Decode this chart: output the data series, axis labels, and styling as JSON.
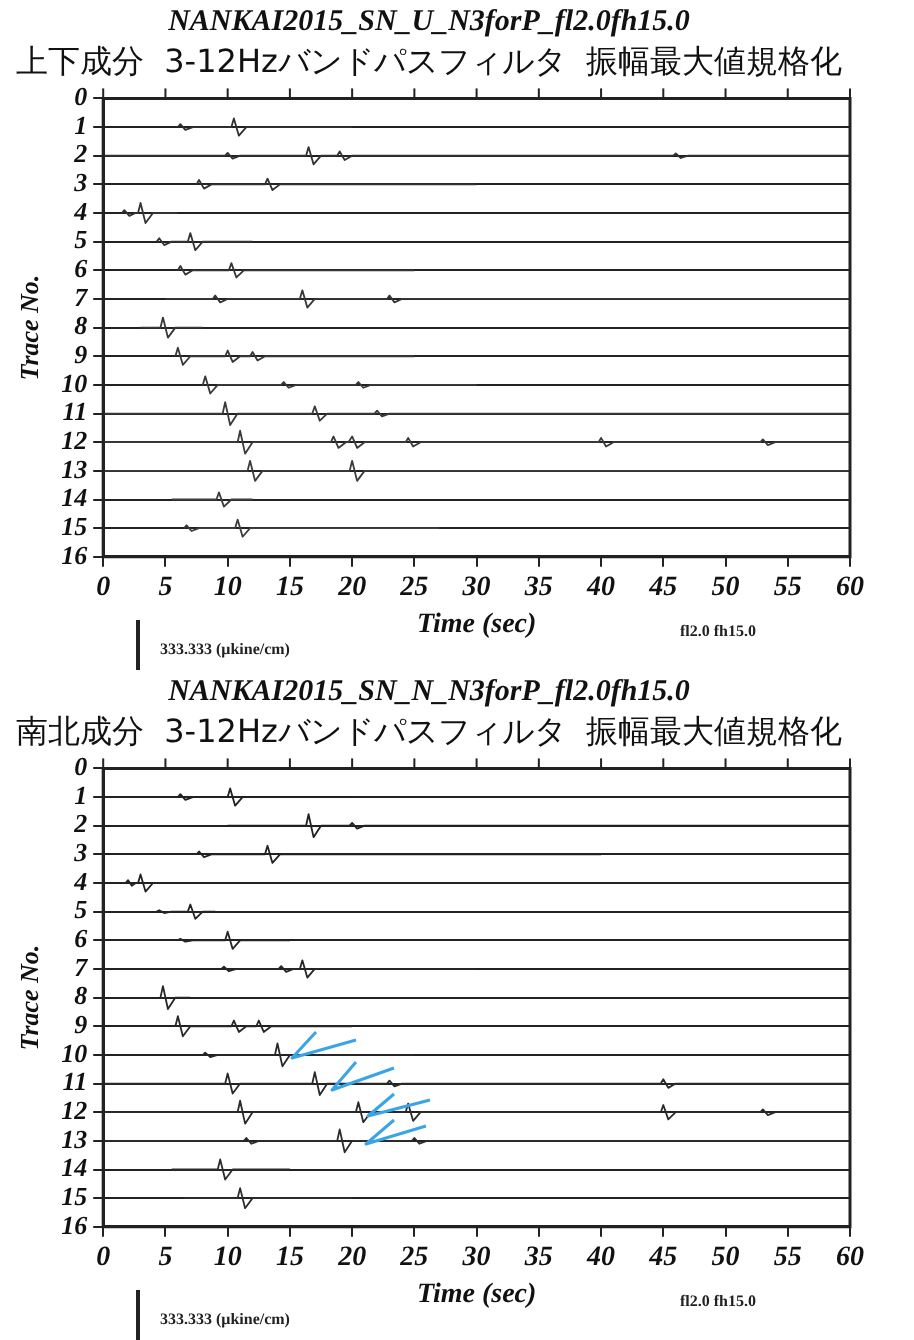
{
  "chart_data": [
    {
      "type": "line",
      "title": "NANKAI2015_SN_U_N3forP_fl2.0fh15.0",
      "subtitle": "上下成分  3-12Hzバンドパスフィルタ  振幅最大値規格化",
      "xlabel": "Time (sec)",
      "ylabel": "Trace No.",
      "xlim": [
        0,
        60
      ],
      "xticks": [
        0,
        5,
        10,
        15,
        20,
        25,
        30,
        35,
        40,
        45,
        50,
        55,
        60
      ],
      "ylim": [
        16,
        0
      ],
      "yticks": [
        0,
        1,
        2,
        3,
        4,
        5,
        6,
        7,
        8,
        9,
        10,
        11,
        12,
        13,
        14,
        15,
        16
      ],
      "grid": "y",
      "legend": false,
      "marker": "none",
      "line_style": "solid",
      "annotations": [
        "333.333 (μkine/cm)",
        "fl2.0 fh15.0"
      ],
      "series": [
        {
          "color": "#303030",
          "x": [
            6,
            6.2,
            6.6,
            7.2,
            10.3,
            10.5,
            10.9,
            11.5,
            20
          ],
          "values": [
            1,
            0.9,
            1.1,
            1,
            1,
            0.7,
            1.3,
            1,
            1
          ]
        },
        {
          "color": "#313131",
          "x": [
            0,
            9.8,
            10,
            10.4,
            11,
            16.3,
            16.5,
            16.9,
            17.5,
            18.8,
            19,
            19.4,
            20,
            45.8,
            46,
            46.4,
            47,
            60
          ],
          "values": [
            2,
            2,
            1.9,
            2.1,
            2,
            2,
            1.7,
            2.3,
            2,
            2,
            1.85,
            2.15,
            2,
            2,
            1.92,
            2.08,
            2,
            2
          ]
        },
        {
          "color": "#323232",
          "x": [
            7.5,
            7.7,
            8.1,
            8.7,
            13,
            13.2,
            13.6,
            14.2,
            30
          ],
          "values": [
            3,
            2.85,
            3.15,
            3,
            3,
            2.8,
            3.2,
            3,
            3
          ]
        },
        {
          "color": "#333333",
          "x": [
            1.5,
            1.7,
            2.1,
            2.6,
            2.8,
            3,
            3.4,
            4,
            6
          ],
          "values": [
            4,
            3.9,
            4.1,
            4,
            4,
            3.65,
            4.35,
            4,
            4
          ]
        },
        {
          "color": "#343434",
          "x": [
            4.3,
            4.5,
            4.9,
            5.5,
            6.8,
            7,
            7.4,
            8,
            12
          ],
          "values": [
            5,
            4.88,
            5.12,
            5,
            5,
            4.7,
            5.3,
            5,
            5
          ]
        },
        {
          "color": "#353535",
          "x": [
            6,
            6.2,
            6.6,
            7.2,
            10.1,
            10.3,
            10.7,
            11.3,
            25
          ],
          "values": [
            6,
            5.85,
            6.15,
            6,
            6,
            5.75,
            6.25,
            6,
            6
          ]
        },
        {
          "color": "#363636",
          "x": [
            5,
            8.8,
            9,
            9.4,
            10,
            15.8,
            16,
            16.4,
            17,
            22.8,
            23,
            23.4,
            24,
            60
          ],
          "values": [
            7,
            7,
            6.88,
            7.12,
            7,
            7,
            6.7,
            7.3,
            7,
            7,
            6.88,
            7.12,
            7,
            7
          ]
        },
        {
          "color": "#373737",
          "x": [
            3,
            4.6,
            4.8,
            5.2,
            5.8,
            8
          ],
          "values": [
            8,
            8,
            7.65,
            8.35,
            8,
            8
          ]
        },
        {
          "color": "#383838",
          "x": [
            5.8,
            6,
            6.4,
            7,
            9.8,
            10,
            10.4,
            11,
            11.8,
            12,
            12.4,
            13,
            25
          ],
          "values": [
            9,
            8.7,
            9.3,
            9,
            9,
            8.8,
            9.2,
            9,
            9,
            8.85,
            9.15,
            9,
            9
          ]
        },
        {
          "color": "#393939",
          "x": [
            8,
            8.2,
            8.6,
            9.2,
            14.3,
            14.5,
            14.9,
            15.5,
            20.3,
            20.5,
            20.9,
            21.5,
            30
          ],
          "values": [
            10,
            9.7,
            10.3,
            10,
            10,
            9.9,
            10.1,
            10,
            10,
            9.9,
            10.1,
            10,
            10
          ]
        },
        {
          "color": "#3a3a3a",
          "x": [
            0,
            9.6,
            9.8,
            10.2,
            10.8,
            16.8,
            17,
            17.4,
            18,
            21.8,
            22,
            22.4,
            23,
            60
          ],
          "values": [
            11,
            11,
            10.6,
            11.4,
            11,
            11,
            10.75,
            11.25,
            11,
            11,
            10.9,
            11.1,
            11,
            11
          ]
        },
        {
          "color": "#3b3b3b",
          "x": [
            0,
            10.8,
            11,
            11.4,
            12,
            18.3,
            18.5,
            18.9,
            19.5,
            19.7,
            20,
            20.4,
            21,
            24.3,
            24.5,
            24.9,
            25.5,
            39.8,
            40,
            40.4,
            41,
            52.8,
            53,
            53.4,
            54,
            60
          ],
          "values": [
            12,
            12,
            11.6,
            12.4,
            12,
            12,
            11.8,
            12.2,
            12,
            12,
            11.8,
            12.2,
            12,
            12,
            11.85,
            12.15,
            12,
            12,
            11.85,
            12.15,
            12,
            12,
            11.9,
            12.1,
            12,
            12
          ]
        },
        {
          "color": "#3c3c3c",
          "x": [
            0,
            11.6,
            11.8,
            12.2,
            12.8,
            19.8,
            20,
            20.4,
            21,
            60
          ],
          "values": [
            13,
            13,
            12.65,
            13.35,
            13,
            13,
            12.65,
            13.35,
            13,
            13
          ]
        },
        {
          "color": "#3d3d3d",
          "x": [
            5.5,
            9.1,
            9.3,
            9.7,
            10.3,
            12
          ],
          "values": [
            14,
            14,
            13.75,
            14.25,
            14,
            14
          ]
        },
        {
          "color": "#3e3e3e",
          "x": [
            6.5,
            6.7,
            7.1,
            7.7,
            10.6,
            10.8,
            11.2,
            11.8,
            27
          ],
          "values": [
            15,
            14.9,
            15.1,
            15,
            15,
            14.7,
            15.3,
            15,
            15
          ]
        }
      ]
    },
    {
      "type": "line",
      "title": "NANKAI2015_SN_N_N3forP_fl2.0fh15.0",
      "subtitle": "南北成分  3-12Hzバンドパスフィルタ  振幅最大値規格化",
      "xlabel": "Time (sec)",
      "ylabel": "Trace No.",
      "xlim": [
        0,
        60
      ],
      "xticks": [
        0,
        5,
        10,
        15,
        20,
        25,
        30,
        35,
        40,
        45,
        50,
        55,
        60
      ],
      "ylim": [
        16,
        0
      ],
      "yticks": [
        0,
        1,
        2,
        3,
        4,
        5,
        6,
        7,
        8,
        9,
        10,
        11,
        12,
        13,
        14,
        15,
        16
      ],
      "grid": "y",
      "legend": false,
      "marker": "none",
      "line_style": "solid",
      "annotations": [
        "333.333 (μkine/cm)",
        "fl2.0 fh15.0"
      ],
      "series": [
        {
          "color": "#202020",
          "x": [
            6,
            6.2,
            6.6,
            7.2,
            10,
            10.2,
            10.6,
            11.2,
            20
          ],
          "values": [
            1,
            0.9,
            1.1,
            1,
            1,
            0.7,
            1.3,
            1,
            1
          ]
        },
        {
          "color": "#212121",
          "x": [
            10,
            16.3,
            16.5,
            16.9,
            17.5,
            19.8,
            20,
            20.4,
            21,
            60
          ],
          "values": [
            2,
            2,
            1.6,
            2.4,
            2,
            2,
            1.9,
            2.1,
            2,
            2
          ]
        },
        {
          "color": "#222222",
          "x": [
            7.5,
            7.7,
            8.1,
            8.7,
            13,
            13.2,
            13.6,
            14.2,
            40
          ],
          "values": [
            3,
            2.9,
            3.1,
            3,
            3,
            2.7,
            3.3,
            3,
            3
          ]
        },
        {
          "color": "#232323",
          "x": [
            1.8,
            2,
            2.3,
            2.6,
            2.8,
            3,
            3.4,
            4,
            5.5
          ],
          "values": [
            4,
            3.9,
            4.1,
            4,
            4,
            3.7,
            4.3,
            4,
            4
          ]
        },
        {
          "color": "#242424",
          "x": [
            4.3,
            4.5,
            4.9,
            5.5,
            6.8,
            7,
            7.4,
            8,
            9
          ],
          "values": [
            5,
            4.95,
            5.05,
            5,
            5,
            4.75,
            5.25,
            5,
            5
          ]
        },
        {
          "color": "#252525",
          "x": [
            6,
            6.2,
            6.6,
            7.2,
            9.8,
            10,
            10.4,
            11,
            15
          ],
          "values": [
            6,
            5.95,
            6.05,
            6,
            6,
            5.7,
            6.3,
            6,
            6
          ]
        },
        {
          "color": "#262626",
          "x": [
            9.5,
            9.7,
            10.1,
            10.7,
            14.1,
            14.3,
            14.7,
            15.3,
            15.8,
            16,
            16.4,
            17,
            30
          ],
          "values": [
            7,
            6.92,
            7.08,
            7,
            7,
            6.9,
            7.1,
            7,
            7,
            6.7,
            7.3,
            7,
            7
          ]
        },
        {
          "color": "#272727",
          "x": [
            4.6,
            4.8,
            5.2,
            5.8,
            7
          ],
          "values": [
            8,
            7.6,
            8.4,
            8,
            8
          ]
        },
        {
          "color": "#282828",
          "x": [
            5.8,
            6,
            6.4,
            7,
            10.3,
            10.5,
            10.9,
            11.5,
            12.3,
            12.5,
            12.9,
            13.5,
            20
          ],
          "values": [
            9,
            8.65,
            9.35,
            9,
            9,
            8.8,
            9.2,
            9,
            9,
            8.8,
            9.2,
            9,
            9
          ]
        },
        {
          "color": "#292929",
          "x": [
            8,
            8.2,
            8.6,
            9.2,
            13.8,
            14,
            14.4,
            15,
            25
          ],
          "values": [
            10,
            9.92,
            10.08,
            10,
            10,
            9.6,
            10.4,
            10,
            10
          ]
        },
        {
          "color": "#2a2a2a",
          "x": [
            0,
            9.8,
            10,
            10.4,
            11,
            16.8,
            17,
            17.4,
            18,
            22.8,
            23,
            23.4,
            24,
            44.8,
            45,
            45.4,
            46,
            60
          ],
          "values": [
            11,
            11,
            10.65,
            11.35,
            11,
            11,
            10.6,
            11.4,
            11,
            11,
            10.9,
            11.1,
            11,
            11,
            10.85,
            11.15,
            11,
            11
          ]
        },
        {
          "color": "#2b2b2b",
          "x": [
            0,
            10.8,
            11,
            11.4,
            12,
            20.3,
            20.5,
            20.9,
            21.5,
            24.3,
            24.5,
            24.9,
            25.5,
            44.8,
            45,
            45.4,
            46,
            52.8,
            53,
            53.4,
            54,
            60
          ],
          "values": [
            12,
            12,
            11.6,
            12.4,
            12,
            12,
            11.65,
            12.35,
            12,
            12,
            11.7,
            12.3,
            12,
            12,
            11.75,
            12.25,
            12,
            12,
            11.9,
            12.1,
            12,
            12
          ]
        },
        {
          "color": "#2c2c2c",
          "x": [
            0,
            11.3,
            11.5,
            11.9,
            12.5,
            18.8,
            19,
            19.4,
            20,
            24.8,
            25,
            25.4,
            26,
            60
          ],
          "values": [
            13,
            13,
            12.9,
            13.1,
            13,
            13,
            12.6,
            13.4,
            13,
            13,
            12.9,
            13.1,
            13,
            13
          ]
        },
        {
          "color": "#2d2d2d",
          "x": [
            5.5,
            9.2,
            9.4,
            9.8,
            10.4,
            15
          ],
          "values": [
            14,
            14,
            13.65,
            14.35,
            14,
            14
          ]
        },
        {
          "color": "#2e2e2e",
          "x": [
            6.5,
            10.8,
            11,
            11.4,
            12,
            20
          ],
          "values": [
            15,
            15,
            14.65,
            15.35,
            15,
            15
          ]
        }
      ]
    }
  ]
}
